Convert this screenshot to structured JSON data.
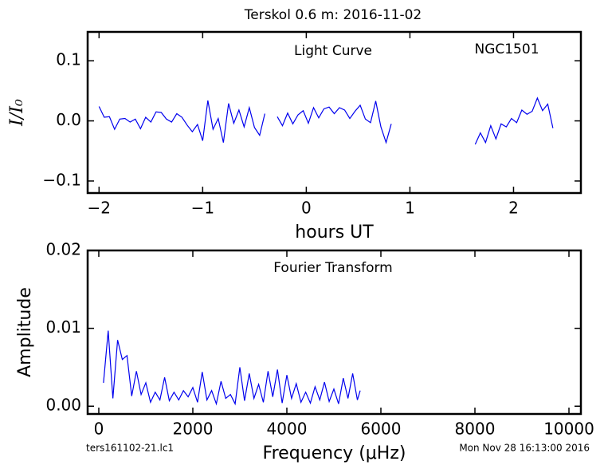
{
  "chart_data": [
    {
      "type": "line",
      "title": "Terskol 0.6 m:  2016-11-02",
      "annotations": [
        "Light Curve",
        "NGC1501"
      ],
      "xlabel": "hours UT",
      "ylabel": "I/I₀",
      "x": [
        -2.0,
        -1.95,
        -1.9,
        -1.85,
        -1.8,
        -1.75,
        -1.7,
        -1.65,
        -1.6,
        -1.55,
        -1.5,
        -1.45,
        -1.4,
        -1.35,
        -1.3,
        -1.25,
        -1.2,
        -1.15,
        -1.1,
        -1.05,
        -1.0,
        -0.95,
        -0.9,
        -0.85,
        -0.8,
        -0.75,
        -0.7,
        -0.65,
        -0.6,
        -0.55,
        -0.5,
        -0.45,
        -0.4,
        -0.34,
        -0.28,
        -0.23,
        -0.18,
        -0.13,
        -0.08,
        -0.03,
        0.02,
        0.07,
        0.12,
        0.17,
        0.22,
        0.27,
        0.32,
        0.37,
        0.42,
        0.47,
        0.52,
        0.57,
        0.62,
        0.67,
        0.72,
        0.77,
        0.82,
        1.2,
        1.63,
        1.68,
        1.73,
        1.78,
        1.83,
        1.88,
        1.93,
        1.98,
        2.03,
        2.08,
        2.13,
        2.18,
        2.23,
        2.28,
        2.33,
        2.38
      ],
      "series": [
        {
          "name": "NGC1501",
          "color": "#0000ee",
          "values": [
            0.024,
            0.006,
            0.007,
            -0.014,
            0.003,
            0.004,
            -0.002,
            0.003,
            -0.013,
            0.006,
            -0.002,
            0.015,
            0.014,
            0.003,
            -0.002,
            0.012,
            0.006,
            -0.007,
            -0.018,
            -0.006,
            -0.033,
            0.034,
            -0.014,
            0.004,
            -0.036,
            0.029,
            -0.004,
            0.018,
            -0.01,
            0.022,
            -0.011,
            -0.024,
            0.012,
            null,
            0.007,
            -0.008,
            0.013,
            -0.005,
            0.01,
            0.017,
            -0.004,
            0.022,
            0.005,
            0.02,
            0.023,
            0.012,
            0.022,
            0.018,
            0.004,
            0.016,
            0.026,
            0.003,
            -0.003,
            0.033,
            -0.01,
            -0.036,
            -0.005,
            null,
            -0.039,
            -0.02,
            -0.036,
            -0.008,
            -0.03,
            -0.005,
            -0.01,
            0.004,
            -0.003,
            0.018,
            0.011,
            0.016,
            0.038,
            0.017,
            0.028,
            -0.012
          ]
        }
      ],
      "xlim": [
        -2.11,
        2.65
      ],
      "xticks": [
        {
          "value": -2,
          "label": "−2"
        },
        {
          "value": -1,
          "label": "−1"
        },
        0,
        1,
        2
      ],
      "ylim": [
        -0.12,
        0.148
      ],
      "yticks": [
        {
          "value": -0.1,
          "label": "−0.1"
        },
        {
          "value": 0,
          "label": "0.0"
        },
        0.1
      ]
    },
    {
      "type": "line",
      "annotations": [
        "Fourier Transform"
      ],
      "xlabel": "Frequency (μHz)",
      "ylabel": "Amplitude",
      "x": [
        100,
        200,
        300,
        400,
        500,
        600,
        700,
        800,
        900,
        1000,
        1100,
        1200,
        1300,
        1400,
        1500,
        1600,
        1700,
        1800,
        1900,
        2000,
        2100,
        2200,
        2300,
        2400,
        2500,
        2600,
        2700,
        2800,
        2900,
        3000,
        3100,
        3200,
        3300,
        3400,
        3500,
        3600,
        3700,
        3800,
        3900,
        4000,
        4100,
        4200,
        4300,
        4400,
        4500,
        4600,
        4700,
        4800,
        4900,
        5000,
        5100,
        5200,
        5300,
        5400,
        5500,
        5560
      ],
      "series": [
        {
          "name": "Amplitude",
          "color": "#0000ee",
          "values": [
            0.003,
            0.0097,
            0.001,
            0.0085,
            0.006,
            0.0065,
            0.0013,
            0.0045,
            0.0015,
            0.003,
            0.0005,
            0.0018,
            0.0008,
            0.0037,
            0.0007,
            0.0018,
            0.0008,
            0.002,
            0.0012,
            0.0024,
            0.0005,
            0.0044,
            0.0008,
            0.002,
            0.0003,
            0.0032,
            0.001,
            0.0015,
            0.0003,
            0.005,
            0.0007,
            0.0042,
            0.001,
            0.0028,
            0.0005,
            0.0045,
            0.0012,
            0.0047,
            0.0004,
            0.004,
            0.001,
            0.0029,
            0.0005,
            0.0018,
            0.0004,
            0.0025,
            0.0008,
            0.0031,
            0.0006,
            0.0022,
            0.0003,
            0.0036,
            0.001,
            0.0042,
            0.0008,
            0.002
          ]
        }
      ],
      "xlim": [
        -237,
        10254
      ],
      "xticks": [
        0,
        2000,
        4000,
        6000,
        8000,
        10000
      ],
      "ylim": [
        -0.001,
        0.02
      ],
      "yticks": [
        {
          "value": 0,
          "label": "0.00"
        },
        {
          "value": 0.01,
          "label": "0.01"
        },
        {
          "value": 0.02,
          "label": "0.02"
        }
      ]
    }
  ],
  "footer": {
    "left": "ters161102-21.lc1",
    "right": "Mon Nov 28 16:13:00 2016"
  }
}
